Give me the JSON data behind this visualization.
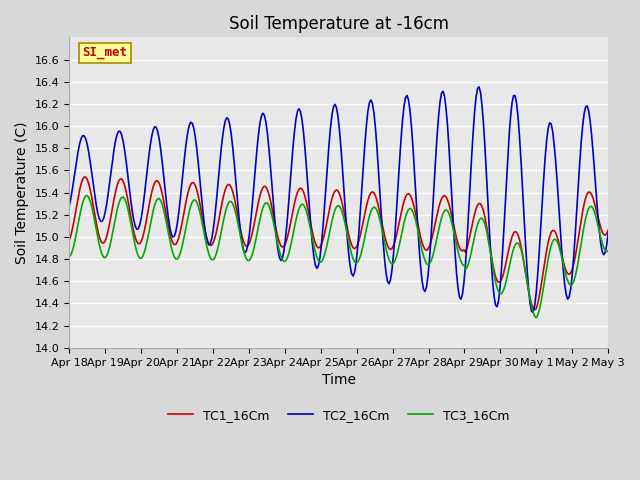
{
  "title": "Soil Temperature at -16cm",
  "xlabel": "Time",
  "ylabel": "Soil Temperature (C)",
  "ylim": [
    14.0,
    16.8
  ],
  "yticks": [
    14.0,
    14.2,
    14.4,
    14.6,
    14.8,
    15.0,
    15.2,
    15.4,
    15.6,
    15.8,
    16.0,
    16.2,
    16.4,
    16.6
  ],
  "line_colors": [
    "#cc0000",
    "#0000cc",
    "#00aa00"
  ],
  "legend_labels": [
    "TC1_16Cm",
    "TC2_16Cm",
    "TC3_16Cm"
  ],
  "annotation_text": "SI_met",
  "annotation_color": "#cc0000",
  "annotation_bg": "#ffff99",
  "fig_bg": "#d8d8d8",
  "plot_bg": "#e8e8e8",
  "grid_color": "#ffffff",
  "title_fontsize": 12,
  "axis_label_fontsize": 10,
  "tick_fontsize": 8,
  "x_tick_labels": [
    "Apr 18",
    "Apr 19",
    "Apr 20",
    "Apr 21",
    "Apr 22",
    "Apr 23",
    "Apr 24",
    "Apr 25",
    "Apr 26",
    "Apr 27",
    "Apr 28",
    "Apr 29",
    "Apr 30",
    "May 1",
    "May 2",
    "May 3"
  ],
  "line_width": 1.2
}
